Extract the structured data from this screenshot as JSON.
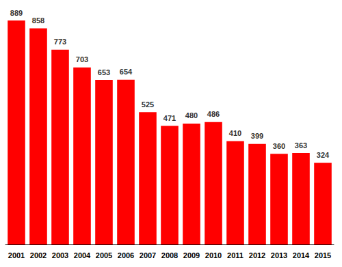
{
  "chart_data": {
    "type": "bar",
    "categories": [
      "2001",
      "2002",
      "2003",
      "2004",
      "2005",
      "2006",
      "2007",
      "2008",
      "2009",
      "2010",
      "2011",
      "2012",
      "2013",
      "2014",
      "2015"
    ],
    "values": [
      889,
      858,
      773,
      703,
      653,
      654,
      525,
      471,
      480,
      486,
      410,
      399,
      360,
      363,
      324
    ],
    "color": "#ff0000",
    "ylim": [
      0,
      900
    ],
    "grid": false,
    "data_labels": true,
    "tick_labels": "x"
  }
}
